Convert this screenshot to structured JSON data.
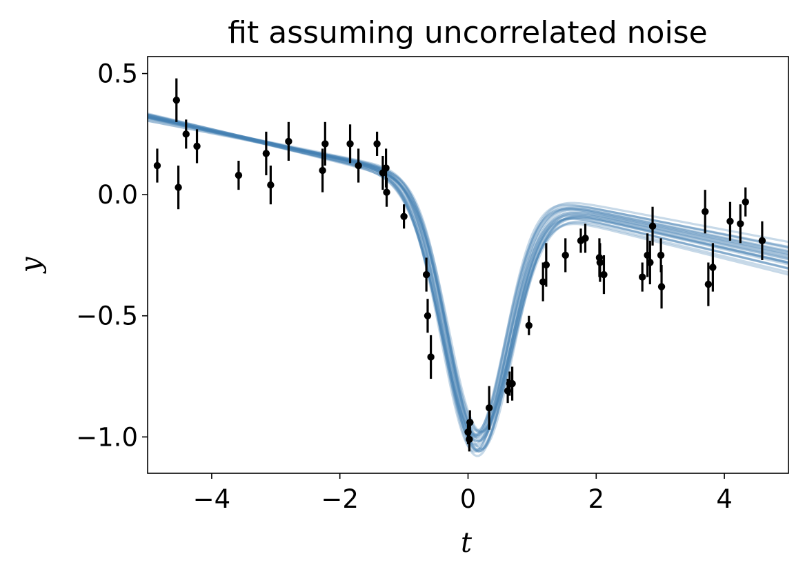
{
  "chart_data": {
    "type": "line",
    "title": "fit assuming uncorrelated noise",
    "xlabel": "t",
    "ylabel": "y",
    "xlim": [
      -5,
      5
    ],
    "ylim": [
      -1.15,
      0.57
    ],
    "grid": false,
    "x_ticks": [
      -4,
      -2,
      0,
      2,
      4
    ],
    "x_tick_labels": [
      "−4",
      "−2",
      "0",
      "2",
      "4"
    ],
    "y_ticks": [
      0.5,
      0.0,
      -0.5,
      -1.0
    ],
    "y_tick_labels": [
      "0.5",
      "0.0",
      "−0.5",
      "−1.0"
    ],
    "data_points": [
      {
        "x": -4.85,
        "y": 0.12,
        "err": 0.07
      },
      {
        "x": -4.55,
        "y": 0.39,
        "err": 0.09
      },
      {
        "x": -4.52,
        "y": 0.03,
        "err": 0.09
      },
      {
        "x": -4.4,
        "y": 0.25,
        "err": 0.06
      },
      {
        "x": -4.23,
        "y": 0.2,
        "err": 0.07
      },
      {
        "x": -3.58,
        "y": 0.08,
        "err": 0.06
      },
      {
        "x": -3.15,
        "y": 0.17,
        "err": 0.09
      },
      {
        "x": -3.08,
        "y": 0.04,
        "err": 0.08
      },
      {
        "x": -2.8,
        "y": 0.22,
        "err": 0.08
      },
      {
        "x": -2.27,
        "y": 0.1,
        "err": 0.09
      },
      {
        "x": -2.23,
        "y": 0.21,
        "err": 0.09
      },
      {
        "x": -1.84,
        "y": 0.21,
        "err": 0.08
      },
      {
        "x": -1.71,
        "y": 0.12,
        "err": 0.07
      },
      {
        "x": -1.42,
        "y": 0.21,
        "err": 0.05
      },
      {
        "x": -1.33,
        "y": 0.09,
        "err": 0.07
      },
      {
        "x": -1.28,
        "y": 0.11,
        "err": 0.08
      },
      {
        "x": -1.27,
        "y": 0.01,
        "err": 0.06
      },
      {
        "x": -1.0,
        "y": -0.09,
        "err": 0.05
      },
      {
        "x": -0.65,
        "y": -0.33,
        "err": 0.07
      },
      {
        "x": -0.63,
        "y": -0.5,
        "err": 0.07
      },
      {
        "x": -0.58,
        "y": -0.67,
        "err": 0.09
      },
      {
        "x": 0.0,
        "y": -0.98,
        "err": 0.05
      },
      {
        "x": 0.02,
        "y": -1.01,
        "err": 0.05
      },
      {
        "x": 0.03,
        "y": -0.94,
        "err": 0.05
      },
      {
        "x": 0.33,
        "y": -0.88,
        "err": 0.09
      },
      {
        "x": 0.62,
        "y": -0.81,
        "err": 0.05
      },
      {
        "x": 0.65,
        "y": -0.78,
        "err": 0.05
      },
      {
        "x": 0.69,
        "y": -0.78,
        "err": 0.07
      },
      {
        "x": 0.95,
        "y": -0.54,
        "err": 0.04
      },
      {
        "x": 1.17,
        "y": -0.36,
        "err": 0.08
      },
      {
        "x": 1.22,
        "y": -0.29,
        "err": 0.09
      },
      {
        "x": 1.52,
        "y": -0.25,
        "err": 0.07
      },
      {
        "x": 1.76,
        "y": -0.19,
        "err": 0.05
      },
      {
        "x": 1.83,
        "y": -0.18,
        "err": 0.06
      },
      {
        "x": 2.05,
        "y": -0.26,
        "err": 0.08
      },
      {
        "x": 2.06,
        "y": -0.28,
        "err": 0.08
      },
      {
        "x": 2.12,
        "y": -0.33,
        "err": 0.08
      },
      {
        "x": 2.72,
        "y": -0.34,
        "err": 0.06
      },
      {
        "x": 2.8,
        "y": -0.25,
        "err": 0.09
      },
      {
        "x": 2.84,
        "y": -0.28,
        "err": 0.09
      },
      {
        "x": 2.88,
        "y": -0.13,
        "err": 0.08
      },
      {
        "x": 3.01,
        "y": -0.25,
        "err": 0.07
      },
      {
        "x": 3.02,
        "y": -0.38,
        "err": 0.09
      },
      {
        "x": 3.7,
        "y": -0.07,
        "err": 0.09
      },
      {
        "x": 3.75,
        "y": -0.37,
        "err": 0.09
      },
      {
        "x": 3.82,
        "y": -0.3,
        "err": 0.1
      },
      {
        "x": 4.09,
        "y": -0.11,
        "err": 0.08
      },
      {
        "x": 4.25,
        "y": -0.12,
        "err": 0.08
      },
      {
        "x": 4.33,
        "y": -0.03,
        "err": 0.06
      },
      {
        "x": 4.59,
        "y": -0.19,
        "err": 0.08
      }
    ],
    "fit_curves": {
      "count": 24,
      "color": "#4682b4",
      "opacity": 0.3,
      "form": "a*t + b + amp*exp(-(t-mu)^2/(2*sigma^2))",
      "samples": [
        {
          "a": -0.058,
          "b": 0.03,
          "amp": -1.04,
          "mu": 0.135,
          "sigma": 0.495
        },
        {
          "a": -0.052,
          "b": 0.045,
          "amp": -1.07,
          "mu": 0.1,
          "sigma": 0.51
        },
        {
          "a": -0.064,
          "b": 0.015,
          "amp": -1.02,
          "mu": 0.17,
          "sigma": 0.48
        },
        {
          "a": -0.06,
          "b": 0.02,
          "amp": -1.05,
          "mu": 0.12,
          "sigma": 0.52
        },
        {
          "a": -0.055,
          "b": 0.04,
          "amp": -1.03,
          "mu": 0.15,
          "sigma": 0.47
        },
        {
          "a": -0.061,
          "b": 0.025,
          "amp": -1.08,
          "mu": 0.09,
          "sigma": 0.505
        },
        {
          "a": -0.057,
          "b": 0.035,
          "amp": -1.0,
          "mu": 0.19,
          "sigma": 0.49
        },
        {
          "a": -0.063,
          "b": 0.01,
          "amp": -1.06,
          "mu": 0.14,
          "sigma": 0.53
        },
        {
          "a": -0.054,
          "b": 0.05,
          "amp": -1.045,
          "mu": 0.11,
          "sigma": 0.46
        },
        {
          "a": -0.059,
          "b": 0.028,
          "amp": -1.025,
          "mu": 0.16,
          "sigma": 0.5
        },
        {
          "a": -0.065,
          "b": 0.005,
          "amp": -1.075,
          "mu": 0.13,
          "sigma": 0.515
        },
        {
          "a": -0.056,
          "b": 0.042,
          "amp": -1.035,
          "mu": 0.08,
          "sigma": 0.485
        },
        {
          "a": -0.06,
          "b": 0.018,
          "amp": -1.055,
          "mu": 0.2,
          "sigma": 0.495
        },
        {
          "a": -0.053,
          "b": 0.048,
          "amp": -1.015,
          "mu": 0.125,
          "sigma": 0.475
        },
        {
          "a": -0.062,
          "b": 0.022,
          "amp": -1.065,
          "mu": 0.145,
          "sigma": 0.525
        },
        {
          "a": -0.058,
          "b": 0.033,
          "amp": -1.005,
          "mu": 0.175,
          "sigma": 0.505
        },
        {
          "a": -0.05,
          "b": 0.055,
          "amp": -1.04,
          "mu": 0.095,
          "sigma": 0.49
        },
        {
          "a": -0.066,
          "b": 0.0,
          "amp": -1.05,
          "mu": 0.155,
          "sigma": 0.5
        },
        {
          "a": -0.057,
          "b": 0.038,
          "amp": -1.085,
          "mu": 0.115,
          "sigma": 0.48
        },
        {
          "a": -0.061,
          "b": 0.026,
          "amp": -0.995,
          "mu": 0.185,
          "sigma": 0.51
        },
        {
          "a": -0.055,
          "b": 0.043,
          "amp": -1.03,
          "mu": 0.105,
          "sigma": 0.52
        },
        {
          "a": -0.063,
          "b": 0.012,
          "amp": -1.06,
          "mu": 0.165,
          "sigma": 0.47
        },
        {
          "a": -0.059,
          "b": 0.03,
          "amp": -1.04,
          "mu": 0.135,
          "sigma": 0.54
        },
        {
          "a": -0.056,
          "b": 0.036,
          "amp": -1.02,
          "mu": 0.145,
          "sigma": 0.455
        }
      ]
    }
  },
  "colors": {
    "curve": "#4682b4",
    "points": "#000000",
    "axes": "#000000",
    "background": "#ffffff"
  }
}
